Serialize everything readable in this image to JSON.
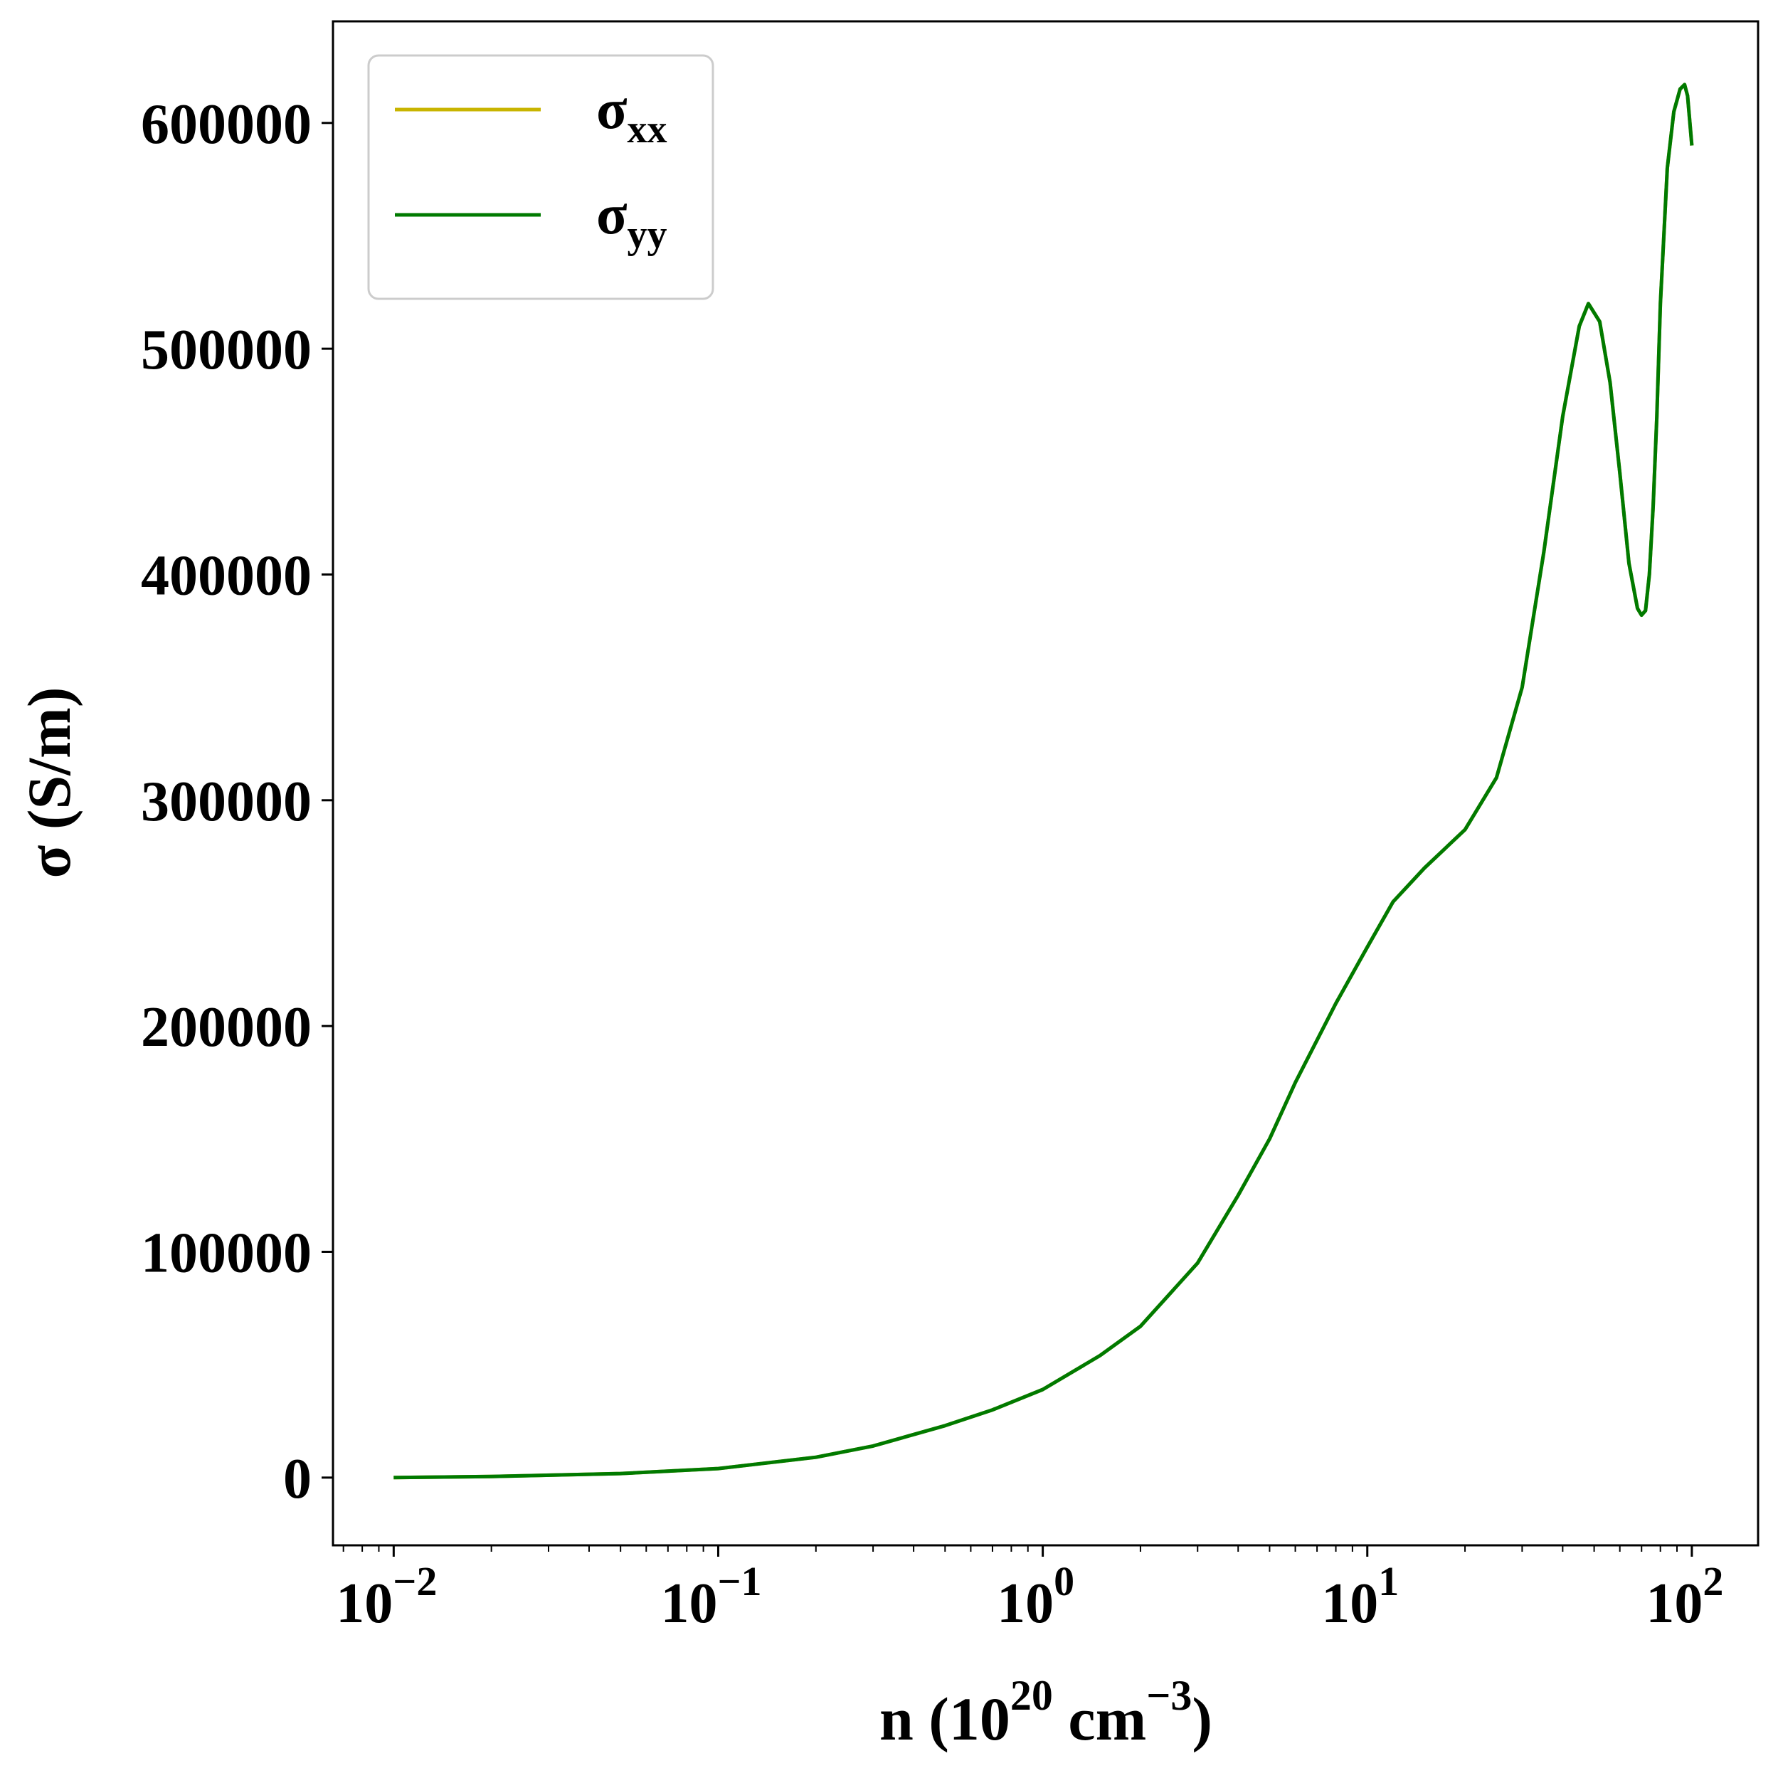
{
  "chart_data": {
    "type": "line",
    "x_scale": "log",
    "xlim": [
      0.0065,
      160
    ],
    "ylim": [
      -30000,
      645000
    ],
    "xlabel": {
      "base": "n (10",
      "exp1": "20",
      "mid": " cm",
      "exp2": "−3",
      "end": ")"
    },
    "ylabel": "σ (S/m)",
    "y_ticks": [
      {
        "value": 0,
        "label": "0"
      },
      {
        "value": 100000,
        "label": "100000"
      },
      {
        "value": 200000,
        "label": "200000"
      },
      {
        "value": 300000,
        "label": "300000"
      },
      {
        "value": 400000,
        "label": "400000"
      },
      {
        "value": 500000,
        "label": "500000"
      },
      {
        "value": 600000,
        "label": "600000"
      }
    ],
    "x_ticks": [
      {
        "value": 0.01,
        "base": "10",
        "exp": "−2"
      },
      {
        "value": 0.1,
        "base": "10",
        "exp": "−1"
      },
      {
        "value": 1,
        "base": "10",
        "exp": "0"
      },
      {
        "value": 10,
        "base": "10",
        "exp": "1"
      },
      {
        "value": 100,
        "base": "10",
        "exp": "2"
      }
    ],
    "legend": {
      "position": "top-left",
      "entries": [
        {
          "symbol": "σ",
          "sub": "xx",
          "color": "#c8b400"
        },
        {
          "symbol": "σ",
          "sub": "yy",
          "color": "#007a00"
        }
      ]
    },
    "series": [
      {
        "name": "σxx",
        "color": "#c8b400",
        "x": [
          0.01,
          0.02,
          0.05,
          0.1,
          0.2,
          0.3,
          0.5,
          0.7,
          1,
          1.5,
          2,
          3,
          4,
          5,
          6,
          8,
          10,
          12,
          15,
          20,
          25,
          30,
          35,
          40,
          45,
          48,
          52,
          56,
          60,
          64,
          68,
          70,
          72,
          74,
          76,
          78,
          80,
          84,
          88,
          92,
          95,
          97,
          100
        ],
        "y": [
          0,
          500,
          1800,
          4000,
          9000,
          14000,
          23000,
          30000,
          39000,
          54000,
          67000,
          95000,
          125000,
          150000,
          175000,
          210000,
          235000,
          255000,
          270000,
          287000,
          310000,
          350000,
          410000,
          470000,
          510000,
          520000,
          512000,
          485000,
          445000,
          405000,
          385000,
          382000,
          384000,
          400000,
          430000,
          470000,
          520000,
          580000,
          605000,
          615000,
          617000,
          612000,
          590000
        ]
      },
      {
        "name": "σyy",
        "color": "#007a00",
        "x": [
          0.01,
          0.02,
          0.05,
          0.1,
          0.2,
          0.3,
          0.5,
          0.7,
          1,
          1.5,
          2,
          3,
          4,
          5,
          6,
          8,
          10,
          12,
          15,
          20,
          25,
          30,
          35,
          40,
          45,
          48,
          52,
          56,
          60,
          64,
          68,
          70,
          72,
          74,
          76,
          78,
          80,
          84,
          88,
          92,
          95,
          97,
          100
        ],
        "y": [
          0,
          500,
          1800,
          4000,
          9000,
          14000,
          23000,
          30000,
          39000,
          54000,
          67000,
          95000,
          125000,
          150000,
          175000,
          210000,
          235000,
          255000,
          270000,
          287000,
          310000,
          350000,
          410000,
          470000,
          510000,
          520000,
          512000,
          485000,
          445000,
          405000,
          385000,
          382000,
          384000,
          400000,
          430000,
          470000,
          520000,
          580000,
          605000,
          615000,
          617000,
          612000,
          590000
        ]
      }
    ]
  }
}
